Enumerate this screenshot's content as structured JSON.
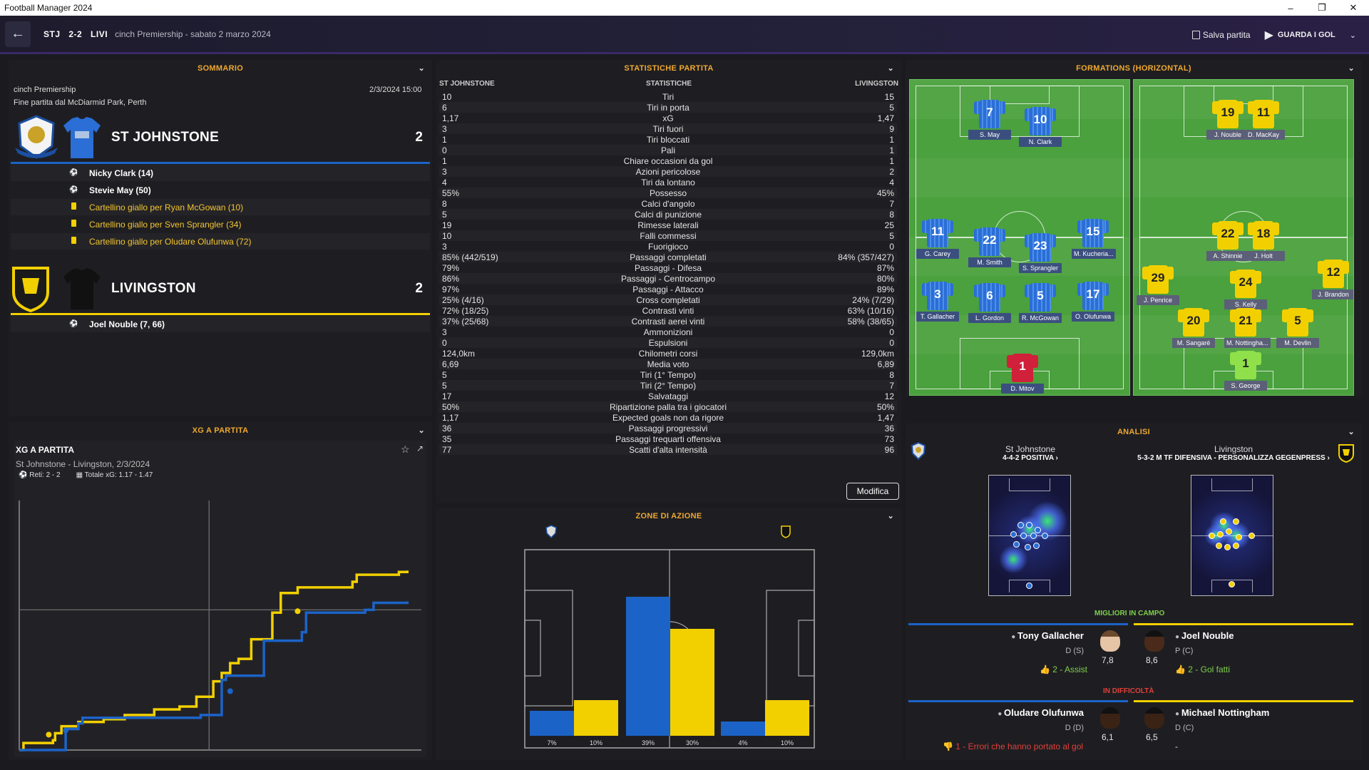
{
  "window": {
    "title": "Football Manager 2024"
  },
  "header": {
    "home_abbr": "STJ",
    "score": "2-2",
    "away_abbr": "LIVI",
    "competition_date": "cinch Premiership - sabato 2 marzo 2024",
    "save_label": "Salva partita",
    "watch_goals_label": "GUARDA I GOL"
  },
  "summary": {
    "title": "SOMMARIO",
    "competition": "cinch Premiership",
    "venue": "Fine partita dal McDiarmid Park, Perth",
    "datetime": "2/3/2024 15:00",
    "home": {
      "name": "ST JOHNSTONE",
      "goals": "2",
      "events": [
        {
          "type": "goal",
          "text": "Nicky Clark (14)"
        },
        {
          "type": "goal",
          "text": "Stevie May (50)"
        },
        {
          "type": "yellow",
          "text": "Cartellino giallo per Ryan McGowan (10)"
        },
        {
          "type": "yellow",
          "text": "Cartellino giallo per Sven Sprangler (34)"
        },
        {
          "type": "yellow",
          "text": "Cartellino giallo per Oludare Olufunwa (72)"
        }
      ]
    },
    "away": {
      "name": "LIVINGSTON",
      "goals": "2",
      "events": [
        {
          "type": "goal",
          "text": "Joel Nouble (7, 66)"
        }
      ]
    }
  },
  "xg": {
    "title": "XG A PARTITA",
    "card_title": "XG A PARTITA",
    "subtitle": "St Johnstone - Livingston, 2/3/2024",
    "goals_label": "Reti: 2 - 2",
    "total_label": "Totale xG: 1.17 - 1.47"
  },
  "stats": {
    "title": "STATISTICHE PARTITA",
    "col_home": "ST JOHNSTONE",
    "col_mid": "STATISTICHE",
    "col_away": "LIVINGSTON",
    "edit_label": "Modifica",
    "rows": [
      [
        "10",
        "Tiri",
        "15"
      ],
      [
        "6",
        "Tiri in porta",
        "5"
      ],
      [
        "1,17",
        "xG",
        "1,47"
      ],
      [
        "3",
        "Tiri fuori",
        "9"
      ],
      [
        "1",
        "Tiri bloccati",
        "1"
      ],
      [
        "0",
        "Pali",
        "1"
      ],
      [
        "1",
        "Chiare occasioni da gol",
        "1"
      ],
      [
        "3",
        "Azioni pericolose",
        "2"
      ],
      [
        "4",
        "Tiri da lontano",
        "4"
      ],
      [
        "55%",
        "Possesso",
        "45%"
      ],
      [
        "8",
        "Calci d'angolo",
        "7"
      ],
      [
        "5",
        "Calci di punizione",
        "8"
      ],
      [
        "19",
        "Rimesse laterali",
        "25"
      ],
      [
        "10",
        "Falli commessi",
        "5"
      ],
      [
        "3",
        "Fuorigioco",
        "0"
      ],
      [
        "85% (442/519)",
        "Passaggi completati",
        "84% (357/427)"
      ],
      [
        "79%",
        "Passaggi - Difesa",
        "87%"
      ],
      [
        "86%",
        "Passaggi - Centrocampo",
        "80%"
      ],
      [
        "97%",
        "Passaggi - Attacco",
        "89%"
      ],
      [
        "25% (4/16)",
        "Cross completati",
        "24% (7/29)"
      ],
      [
        "72% (18/25)",
        "Contrasti vinti",
        "63% (10/16)"
      ],
      [
        "37% (25/68)",
        "Contrasti aerei vinti",
        "58% (38/65)"
      ],
      [
        "3",
        "Ammonizioni",
        "0"
      ],
      [
        "0",
        "Espulsioni",
        "0"
      ],
      [
        "124,0km",
        "Chilometri corsi",
        "129,0km"
      ],
      [
        "6,69",
        "Media voto",
        "6,89"
      ],
      [
        "5",
        "Tiri (1° Tempo)",
        "8"
      ],
      [
        "5",
        "Tiri (2° Tempo)",
        "7"
      ],
      [
        "17",
        "Salvataggi",
        "12"
      ],
      [
        "50%",
        "Ripartizione palla tra i giocatori",
        "50%"
      ],
      [
        "1,17",
        "Expected goals non da rigore",
        "1,47"
      ],
      [
        "36",
        "Passaggi progressivi",
        "36"
      ],
      [
        "35",
        "Passaggi trequarti offensiva",
        "73"
      ],
      [
        "77",
        "Scatti d'alta intensità",
        "96"
      ]
    ]
  },
  "zones": {
    "title": "ZONE DI AZIONE",
    "bars": [
      {
        "home": 7,
        "away": 10,
        "home_label": "7%",
        "away_label": "10%"
      },
      {
        "home": 39,
        "away": 30,
        "home_label": "39%",
        "away_label": "30%"
      },
      {
        "home": 4,
        "away": 10,
        "home_label": "4%",
        "away_label": "10%"
      }
    ]
  },
  "formations": {
    "title": "FORMATIONS (HORIZONTAL)",
    "home": [
      {
        "n": "7",
        "name": "S. May"
      },
      {
        "n": "10",
        "name": "N. Clark"
      },
      {
        "n": "11",
        "name": "G. Carey"
      },
      {
        "n": "22",
        "name": "M. Smith"
      },
      {
        "n": "23",
        "name": "S. Sprangler"
      },
      {
        "n": "15",
        "name": "M. Kucheria..."
      },
      {
        "n": "3",
        "name": "T. Gallacher"
      },
      {
        "n": "6",
        "name": "L. Gordon"
      },
      {
        "n": "5",
        "name": "R. McGowan"
      },
      {
        "n": "17",
        "name": "O. Olufunwa"
      },
      {
        "n": "1",
        "name": "D. Mitov"
      }
    ],
    "away": [
      {
        "n": "19",
        "name": "J. Nouble"
      },
      {
        "n": "11",
        "name": "D. MacKay"
      },
      {
        "n": "22",
        "name": "A. Shinnie"
      },
      {
        "n": "18",
        "name": "J. Holt"
      },
      {
        "n": "29",
        "name": "J. Penrice"
      },
      {
        "n": "24",
        "name": "S. Kelly"
      },
      {
        "n": "12",
        "name": "J. Brandon"
      },
      {
        "n": "20",
        "name": "M. Sangaré"
      },
      {
        "n": "21",
        "name": "M. Nottingha..."
      },
      {
        "n": "5",
        "name": "M. Devlin"
      },
      {
        "n": "1",
        "name": "S. George"
      }
    ]
  },
  "analysis": {
    "title": "ANALISI",
    "home_team": "St Johnstone",
    "home_tactic": "4-4-2 POSITIVA ›",
    "away_team": "Livingston",
    "away_tactic": "5-3-2 M TF DIFENSIVA - PERSONALIZZA GEGENPRESS ›"
  },
  "best": {
    "title": "MIGLIORI IN CAMPO",
    "home": {
      "name": "Tony Gallacher",
      "pos": "D (S)",
      "rating": "7,8",
      "note": "2 - Assist"
    },
    "away": {
      "name": "Joel Nouble",
      "pos": "P (C)",
      "rating": "8,6",
      "note": "2 - Gol fatti"
    }
  },
  "worst": {
    "title": "IN DIFFICOLTÀ",
    "home": {
      "name": "Oludare Olufunwa",
      "pos": "D (D)",
      "rating": "6,1",
      "note": "1 - Errori che hanno portato al gol"
    },
    "away": {
      "name": "Michael Nottingham",
      "pos": "D (C)",
      "rating": "6,5",
      "note": "-"
    }
  },
  "colors": {
    "home": "#1c63c8",
    "away": "#f2d000",
    "accent": "#f0a830",
    "green": "#7fd04a",
    "red": "#e0403a"
  }
}
